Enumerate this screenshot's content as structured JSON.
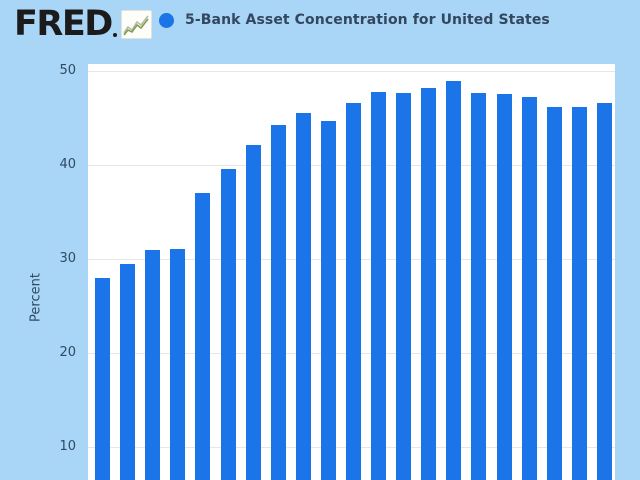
{
  "header": {
    "logo_text": "FRED",
    "logo_icon": "line-chart-icon",
    "series_title": "5-Bank Asset Concentration for United States"
  },
  "chart_data": {
    "type": "bar",
    "title": "5-Bank Asset Concentration for United States",
    "xlabel": "",
    "ylabel": "Percent",
    "yticks": [
      50,
      40,
      30,
      20,
      10
    ],
    "ylim_visible": [
      6.5,
      52
    ],
    "grid": true,
    "legend_position": "top",
    "x_tick_labels_visible": false,
    "values": [
      28.0,
      29.5,
      31.0,
      31.1,
      37.0,
      39.6,
      42.1,
      44.3,
      45.5,
      44.7,
      46.6,
      47.8,
      47.7,
      48.2,
      48.9,
      47.7,
      47.6,
      47.2,
      46.2,
      46.2,
      46.6
    ],
    "bar_color": "#1b74e8",
    "background_color": "#a9d5f6",
    "plot_background": "#ffffff",
    "gridline_color": "#e6e6e6",
    "text_color": "#2e4a63",
    "title_color": "#33475f",
    "logo_color": "#1b1b1b"
  }
}
